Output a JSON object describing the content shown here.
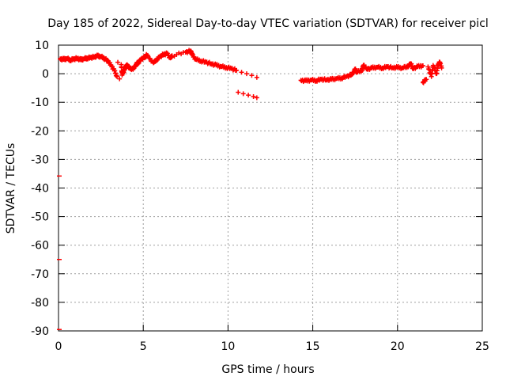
{
  "chart_data": {
    "type": "scatter",
    "title": "Day 185 of 2022, Sidereal Day-to-day VTEC variation (SDTVAR) for receiver picl",
    "xlabel": "GPS time / hours",
    "ylabel": "SDTVAR / TECUs",
    "xlim": [
      0,
      25
    ],
    "ylim": [
      -90,
      10
    ],
    "xticks": [
      0,
      5,
      10,
      15,
      20,
      25
    ],
    "yticks": [
      10,
      0,
      -10,
      -20,
      -30,
      -40,
      -50,
      -60,
      -70,
      -80,
      -90
    ],
    "grid": true,
    "series": [
      {
        "name": "SDTVAR",
        "color": "#ff0000",
        "marker": "plus",
        "points": [
          [
            0.1,
            5.2
          ],
          [
            0.3,
            5.0
          ],
          [
            0.5,
            5.3
          ],
          [
            0.7,
            4.8
          ],
          [
            0.9,
            5.1
          ],
          [
            1.1,
            5.4
          ],
          [
            1.3,
            4.9
          ],
          [
            1.5,
            5.2
          ],
          [
            1.7,
            5.5
          ],
          [
            1.9,
            5.6
          ],
          [
            2.1,
            5.9
          ],
          [
            2.3,
            6.2
          ],
          [
            2.5,
            6.0
          ],
          [
            2.7,
            5.4
          ],
          [
            2.9,
            4.5
          ],
          [
            3.1,
            3.0
          ],
          [
            3.3,
            1.0
          ],
          [
            3.45,
            -1.0
          ],
          [
            3.6,
            -1.8
          ],
          [
            3.75,
            -0.5
          ],
          [
            3.9,
            1.5
          ],
          [
            4.0,
            3.0
          ],
          [
            3.5,
            4.0
          ],
          [
            3.7,
            3.2
          ],
          [
            4.2,
            2.0
          ],
          [
            4.4,
            1.5
          ],
          [
            4.1,
            2.6
          ],
          [
            4.6,
            3.5
          ],
          [
            4.7,
            3.8
          ],
          [
            4.9,
            5.2
          ],
          [
            5.1,
            5.8
          ],
          [
            5.2,
            6.5
          ],
          [
            5.6,
            3.8
          ],
          [
            5.8,
            5.0
          ],
          [
            6.0,
            6.0
          ],
          [
            6.2,
            6.8
          ],
          [
            6.4,
            7.0
          ],
          [
            6.6,
            5.5
          ],
          [
            6.7,
            6.3
          ],
          [
            7.5,
            7.5
          ],
          [
            7.8,
            8.0
          ],
          [
            7.9,
            6.5
          ],
          [
            8.1,
            5.0
          ],
          [
            8.4,
            4.5
          ],
          [
            8.7,
            4.0
          ],
          [
            9.0,
            3.5
          ],
          [
            9.3,
            3.0
          ],
          [
            9.6,
            2.5
          ],
          [
            9.9,
            2.2
          ],
          [
            10.2,
            1.8
          ],
          [
            10.5,
            1.2
          ],
          [
            10.8,
            0.5
          ],
          [
            11.1,
            0.0
          ],
          [
            11.4,
            -0.6
          ],
          [
            11.7,
            -1.3
          ],
          [
            10.6,
            -6.5
          ],
          [
            10.9,
            -7.0
          ],
          [
            11.2,
            -7.5
          ],
          [
            11.5,
            -8.0
          ],
          [
            11.7,
            -8.4
          ],
          [
            0.0,
            -35.8
          ],
          [
            0.0,
            -65.0
          ],
          [
            0.0,
            -89.5
          ],
          [
            14.3,
            -2.3
          ],
          [
            14.6,
            -2.5
          ],
          [
            14.9,
            -2.2
          ],
          [
            15.2,
            -2.4
          ],
          [
            15.5,
            -2.0
          ],
          [
            15.8,
            -2.1
          ],
          [
            16.1,
            -2.0
          ],
          [
            16.4,
            -1.7
          ],
          [
            16.7,
            -1.5
          ],
          [
            17.0,
            -1.0
          ],
          [
            17.3,
            -0.3
          ],
          [
            17.6,
            0.5
          ],
          [
            17.9,
            1.2
          ],
          [
            18.2,
            1.6
          ],
          [
            18.5,
            2.0
          ],
          [
            18.8,
            2.3
          ],
          [
            19.1,
            2.0
          ],
          [
            19.4,
            2.4
          ],
          [
            19.7,
            2.1
          ],
          [
            20.0,
            2.2
          ],
          [
            20.3,
            2.0
          ],
          [
            20.6,
            2.6
          ],
          [
            20.9,
            1.8
          ],
          [
            21.2,
            2.5
          ],
          [
            21.5,
            2.8
          ],
          [
            21.8,
            2.4
          ],
          [
            22.1,
            2.9
          ],
          [
            22.4,
            3.2
          ],
          [
            22.6,
            2.0
          ],
          [
            22.3,
            0.0
          ],
          [
            22.0,
            -1.0
          ],
          [
            21.7,
            -2.0
          ],
          [
            21.5,
            -3.0
          ],
          [
            18.0,
            3.0
          ],
          [
            17.5,
            1.5
          ],
          [
            20.8,
            3.5
          ],
          [
            22.5,
            4.0
          ]
        ]
      }
    ]
  }
}
